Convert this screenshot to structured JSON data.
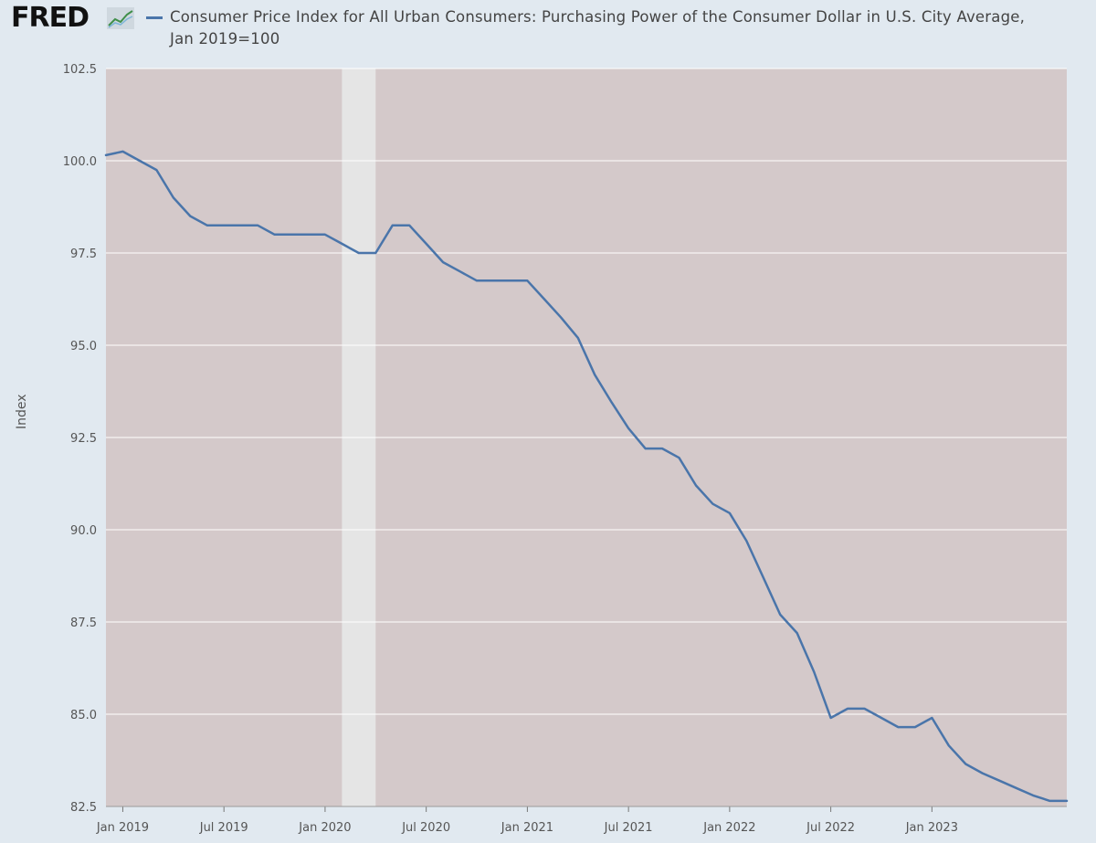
{
  "header": {
    "logo_text": "FRED",
    "title": "Consumer Price Index for All Urban Consumers: Purchasing Power of the Consumer Dollar in U.S. City Average, Jan 2019=100"
  },
  "colors": {
    "line": "#4a75aa",
    "plot_bg": "#d4c9ca",
    "recession": "#e5e5e5",
    "page_bg": "#e1e9f0"
  },
  "chart_data": {
    "type": "line",
    "ylabel": "Index",
    "ylim": [
      82.5,
      102.5
    ],
    "yticks": [
      "82.5",
      "85.0",
      "87.5",
      "90.0",
      "92.5",
      "95.0",
      "97.5",
      "100.0",
      "102.5"
    ],
    "xlim": [
      "2018-12",
      "2023-09"
    ],
    "xticks": [
      "Jan 2019",
      "Jul 2019",
      "Jan 2020",
      "Jul 2020",
      "Jan 2021",
      "Jul 2021",
      "Jan 2022",
      "Jul 2022",
      "Jan 2023"
    ],
    "recession": {
      "start": "2020-02",
      "end": "2020-04"
    },
    "grid": true,
    "series": [
      {
        "x": [
          "2018-12",
          "2019-01",
          "2019-02",
          "2019-03",
          "2019-04",
          "2019-05",
          "2019-06",
          "2019-07",
          "2019-08",
          "2019-09",
          "2019-10",
          "2019-11",
          "2019-12",
          "2020-01",
          "2020-02",
          "2020-03",
          "2020-04",
          "2020-05",
          "2020-06",
          "2020-07",
          "2020-08",
          "2020-09",
          "2020-10",
          "2020-11",
          "2020-12",
          "2021-01",
          "2021-02",
          "2021-03",
          "2021-04",
          "2021-05",
          "2021-06",
          "2021-07",
          "2021-08",
          "2021-09",
          "2021-10",
          "2021-11",
          "2021-12",
          "2022-01",
          "2022-02",
          "2022-03",
          "2022-04",
          "2022-05",
          "2022-06",
          "2022-07",
          "2022-08",
          "2022-09",
          "2022-10",
          "2022-11",
          "2022-12",
          "2023-01",
          "2023-02",
          "2023-03",
          "2023-04",
          "2023-05",
          "2023-06",
          "2023-07",
          "2023-08",
          "2023-09"
        ],
        "values": [
          100.15,
          100.25,
          100.0,
          99.75,
          99.0,
          98.5,
          98.25,
          98.25,
          98.25,
          98.25,
          98.0,
          98.0,
          98.0,
          98.0,
          97.75,
          97.5,
          97.5,
          98.25,
          98.25,
          97.75,
          97.25,
          97.0,
          96.75,
          96.75,
          96.75,
          96.75,
          96.25,
          95.75,
          95.2,
          94.2,
          93.45,
          92.75,
          92.2,
          92.2,
          91.95,
          91.2,
          90.7,
          90.45,
          89.7,
          88.7,
          87.7,
          87.2,
          86.15,
          84.9,
          85.15,
          85.15,
          84.9,
          84.65,
          84.65,
          84.9,
          84.15,
          83.65,
          83.4,
          83.2,
          83.0,
          82.8,
          82.65,
          82.65
        ]
      }
    ]
  }
}
